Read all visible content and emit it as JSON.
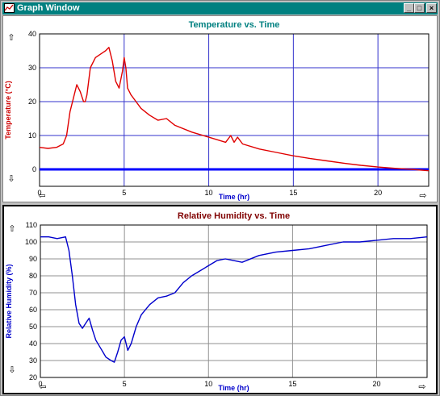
{
  "window": {
    "title": "Graph Window",
    "buttons": {
      "minimize": "_",
      "maximize": "□",
      "close": "×"
    }
  },
  "nav_icons": {
    "up": "⇧",
    "down": "⇩",
    "left": "⇦",
    "right": "⇨"
  },
  "chart_data": [
    {
      "type": "line",
      "title": "Temperature vs. Time",
      "xlabel": "Time (hr)",
      "ylabel": "Temperature (°C)",
      "xlim": [
        0,
        23
      ],
      "ylim": [
        -5,
        40
      ],
      "xticks": [
        0,
        5,
        10,
        15,
        20
      ],
      "yticks": [
        0,
        10,
        20,
        30,
        40
      ],
      "grid": true,
      "colors": {
        "series": "#e00000",
        "title": "#008080",
        "axis_label": "#cc0000",
        "xlabel": "#0000cc",
        "grid": "#3333cc",
        "zero_line": "#0000ff"
      },
      "series": [
        {
          "x": [
            0,
            0.5,
            1,
            1.4,
            1.6,
            1.8,
            2.0,
            2.2,
            2.4,
            2.6,
            2.7,
            2.8,
            3.0,
            3.3,
            3.6,
            3.9,
            4.1,
            4.3,
            4.5,
            4.7,
            4.9,
            5.0,
            5.1,
            5.2,
            5.4,
            5.7,
            6.0,
            6.5,
            7.0,
            7.5,
            8.0,
            9.0,
            10.0,
            11.0,
            11.3,
            11.5,
            11.7,
            12.0,
            13.0,
            14.0,
            15.0,
            16.0,
            17.0,
            18.0,
            19.0,
            20.0,
            21.0,
            22.0,
            23.0
          ],
          "values": [
            6.5,
            6.2,
            6.5,
            7.5,
            10,
            17,
            21,
            25,
            23,
            20,
            20,
            22,
            30,
            33,
            34,
            35,
            36,
            32,
            26,
            24,
            29,
            33,
            30,
            24,
            22,
            20,
            18,
            16,
            14.5,
            15,
            13,
            11,
            9.5,
            8,
            10,
            8,
            9.5,
            7.5,
            6,
            5,
            4,
            3.2,
            2.5,
            1.8,
            1.2,
            0.7,
            0.3,
            0,
            -0.4
          ]
        }
      ]
    },
    {
      "type": "line",
      "title": "Relative Humidity vs. Time",
      "xlabel": "Time (hr)",
      "ylabel": "Relative Humidity (%)",
      "xlim": [
        0,
        23
      ],
      "ylim": [
        20,
        110
      ],
      "xticks": [
        0,
        5,
        10,
        15,
        20
      ],
      "yticks": [
        20,
        30,
        40,
        50,
        60,
        70,
        80,
        90,
        100,
        110
      ],
      "grid": true,
      "colors": {
        "series": "#0000cc",
        "title": "#800000",
        "axis_label": "#0000cc",
        "xlabel": "#0000cc",
        "grid": "#909090"
      },
      "series": [
        {
          "x": [
            0,
            0.5,
            1.0,
            1.5,
            1.7,
            1.9,
            2.1,
            2.3,
            2.5,
            2.7,
            2.9,
            3.1,
            3.3,
            3.6,
            3.9,
            4.2,
            4.4,
            4.6,
            4.8,
            5.0,
            5.2,
            5.4,
            5.7,
            6.0,
            6.5,
            7.0,
            7.5,
            8.0,
            8.5,
            9.0,
            10.0,
            10.5,
            11.0,
            11.5,
            12.0,
            13.0,
            14.0,
            15.0,
            16.0,
            17.0,
            18.0,
            19.0,
            20.0,
            21.0,
            22.0,
            23.0
          ],
          "values": [
            103,
            103,
            102,
            103,
            95,
            80,
            63,
            52,
            49,
            52,
            55,
            48,
            42,
            37,
            32,
            30,
            29,
            35,
            42,
            44,
            36,
            40,
            50,
            57,
            63,
            67,
            68,
            70,
            76,
            80,
            86,
            89,
            90,
            89,
            88,
            92,
            94,
            95,
            96,
            98,
            100,
            100,
            101,
            102,
            102,
            103
          ]
        }
      ]
    }
  ]
}
